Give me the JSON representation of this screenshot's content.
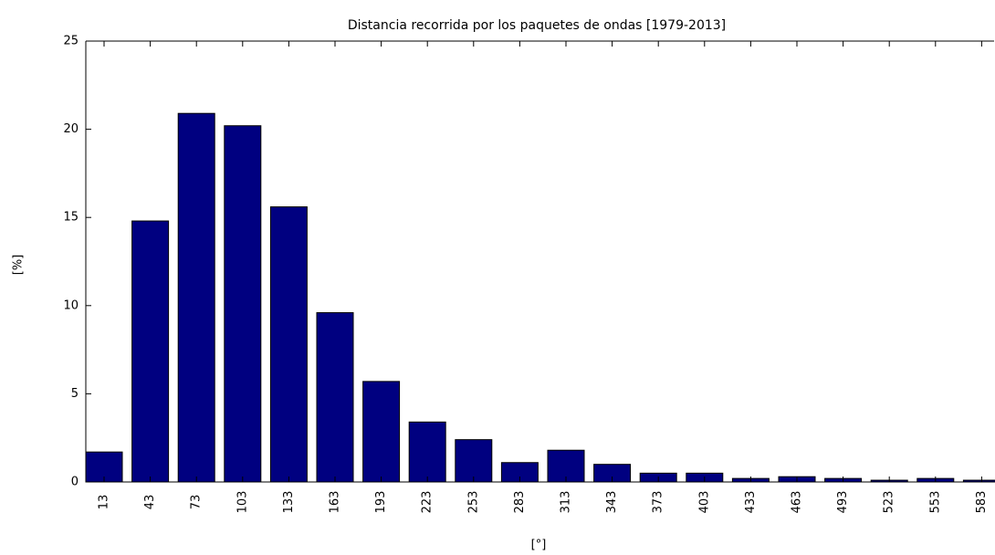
{
  "chart_data": {
    "type": "bar",
    "title": "Distancia recorrida por los paquetes de ondas [1979-2013]",
    "x_label": "[°]",
    "y_label": "[%]",
    "categories": [
      "13",
      "43",
      "73",
      "103",
      "133",
      "163",
      "193",
      "223",
      "253",
      "283",
      "313",
      "343",
      "373",
      "403",
      "433",
      "463",
      "493",
      "523",
      "553",
      "583"
    ],
    "values": [
      1.7,
      14.8,
      20.9,
      20.2,
      15.6,
      9.6,
      5.7,
      3.4,
      2.4,
      1.1,
      1.8,
      1.0,
      0.5,
      0.5,
      0.2,
      0.3,
      0.2,
      0.1,
      0.2,
      0.1
    ],
    "color": "#000080",
    "ylim": [
      0,
      25
    ],
    "yticks": [
      0,
      5,
      10,
      15,
      20,
      25
    ],
    "grid": false
  }
}
